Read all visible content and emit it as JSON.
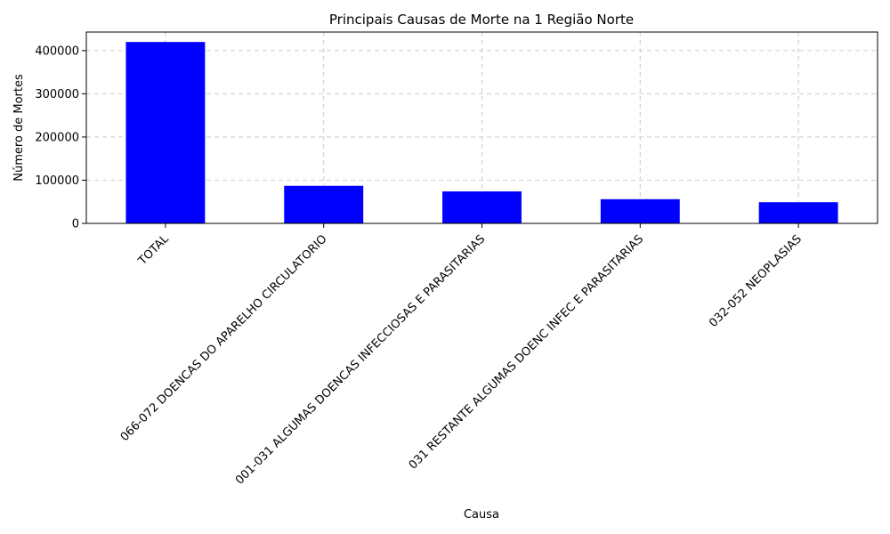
{
  "chart_data": {
    "type": "bar",
    "title": "Principais Causas de Morte na 1 Região Norte",
    "xlabel": "Causa",
    "ylabel": "Número de Mortes",
    "categories": [
      "TOTAL",
      "066-072 DOENCAS DO APARELHO CIRCULATORIO",
      "001-031 ALGUMAS DOENCAS INFECCIOSAS E PARASITARIAS",
      "031 RESTANTE ALGUMAS DOENC INFEC E PARASITARIAS",
      "032-052 NEOPLASIAS"
    ],
    "values": [
      420000,
      87000,
      74000,
      56000,
      49000
    ],
    "ylim": [
      0,
      443000
    ],
    "yticks": [
      0,
      100000,
      200000,
      300000,
      400000
    ],
    "grid": true,
    "bar_color": "#0000ff",
    "grid_color": "#cccccc"
  }
}
